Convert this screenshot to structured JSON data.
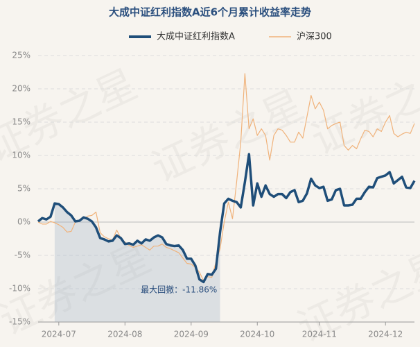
{
  "chart_data": {
    "type": "line",
    "title": "大成中证红利指数A近6个月累计收益率走势",
    "watermark": "证券之星",
    "annotation": "最大回撤：-11.86%",
    "categories": [
      null,
      null,
      null,
      null,
      null,
      "2024-07",
      null,
      null,
      null,
      null,
      null,
      null,
      null,
      null,
      null,
      null,
      null,
      null,
      null,
      null,
      null,
      "2024-08",
      null,
      null,
      null,
      null,
      null,
      null,
      null,
      null,
      null,
      null,
      null,
      null,
      null,
      null,
      null,
      "2024-09",
      null,
      null,
      null,
      null,
      null,
      null,
      null,
      null,
      null,
      null,
      null,
      null,
      null,
      null,
      null,
      "2024-10",
      null,
      null,
      null,
      null,
      null,
      null,
      null,
      null,
      null,
      null,
      null,
      null,
      null,
      null,
      "2024-11",
      null,
      null,
      null,
      null,
      null,
      null,
      null,
      null,
      null,
      null,
      null,
      null,
      null,
      null,
      null,
      "2024-12",
      null,
      null,
      null,
      null,
      null,
      null,
      null
    ],
    "series": [
      {
        "name": "大成中证红利指数A",
        "color": "#1f4e79",
        "values": [
          0.1,
          0.6,
          0.4,
          0.8,
          2.8,
          2.7,
          2.2,
          1.5,
          1.0,
          0.1,
          0.2,
          0.7,
          0.5,
          0.1,
          -0.8,
          -2.4,
          -2.6,
          -2.9,
          -2.8,
          -2.0,
          -2.4,
          -3.3,
          -3.2,
          -3.4,
          -2.8,
          -3.2,
          -2.6,
          -2.8,
          -2.3,
          -2.0,
          -2.3,
          -3.3,
          -3.5,
          -3.6,
          -3.5,
          -4.2,
          -5.5,
          -5.5,
          -6.5,
          -8.6,
          -9.0,
          -7.8,
          -7.9,
          -7.0,
          -1.5,
          2.8,
          3.5,
          3.2,
          3.0,
          2.2,
          6.0,
          10.2,
          2.5,
          5.8,
          3.8,
          5.5,
          4.2,
          3.8,
          4.2,
          4.2,
          3.6,
          4.5,
          4.8,
          3.0,
          3.2,
          4.3,
          6.5,
          5.5,
          5.1,
          5.3,
          3.2,
          3.4,
          4.8,
          5.0,
          2.5,
          2.5,
          2.6,
          3.5,
          3.5,
          4.5,
          5.3,
          5.2,
          6.6,
          6.8,
          7.0,
          7.5,
          5.8,
          6.3,
          6.8,
          5.2,
          5.1,
          6.2
        ]
      },
      {
        "name": "沪深300",
        "color": "#f0b27a",
        "values": [
          0.0,
          -0.3,
          -0.3,
          0.1,
          -0.1,
          -0.4,
          -0.8,
          -1.5,
          -1.4,
          0.0,
          0.3,
          0.5,
          0.9,
          1.0,
          1.5,
          -1.6,
          -2.2,
          -2.5,
          -2.7,
          -1.2,
          -2.4,
          -3.0,
          -3.5,
          -3.8,
          -3.6,
          -3.4,
          -3.8,
          -4.2,
          -3.6,
          -3.6,
          -3.3,
          -3.8,
          -4.0,
          -4.3,
          -4.6,
          -5.4,
          -6.2,
          -6.3,
          -6.8,
          -7.5,
          -8.8,
          -8.2,
          -8.3,
          -6.0,
          -4.0,
          0.0,
          3.0,
          0.5,
          6.0,
          12.0,
          22.3,
          14.0,
          15.5,
          13.0,
          14.0,
          13.0,
          9.3,
          13.0,
          14.0,
          13.8,
          13.0,
          12.0,
          12.0,
          13.5,
          12.6,
          15.8,
          19.0,
          17.0,
          18.0,
          16.8,
          14.0,
          14.5,
          14.8,
          15.0,
          11.5,
          10.8,
          11.5,
          11.0,
          12.5,
          13.8,
          13.6,
          12.8,
          14.0,
          13.6,
          15.0,
          16.0,
          13.3,
          12.8,
          13.2,
          13.5,
          13.3,
          14.8
        ]
      }
    ],
    "ylim": [
      -15,
      25
    ],
    "yticks": [
      {
        "value": -15,
        "label": "-15%"
      },
      {
        "value": -10,
        "label": "-10%"
      },
      {
        "value": -5,
        "label": "-5%"
      },
      {
        "value": 0,
        "label": "0%"
      },
      {
        "value": 5,
        "label": "5%"
      },
      {
        "value": 10,
        "label": "10%"
      },
      {
        "value": 15,
        "label": "15%"
      },
      {
        "value": 20,
        "label": "20%"
      },
      {
        "value": 25,
        "label": "25%"
      }
    ],
    "grid": true,
    "legend": "top"
  }
}
